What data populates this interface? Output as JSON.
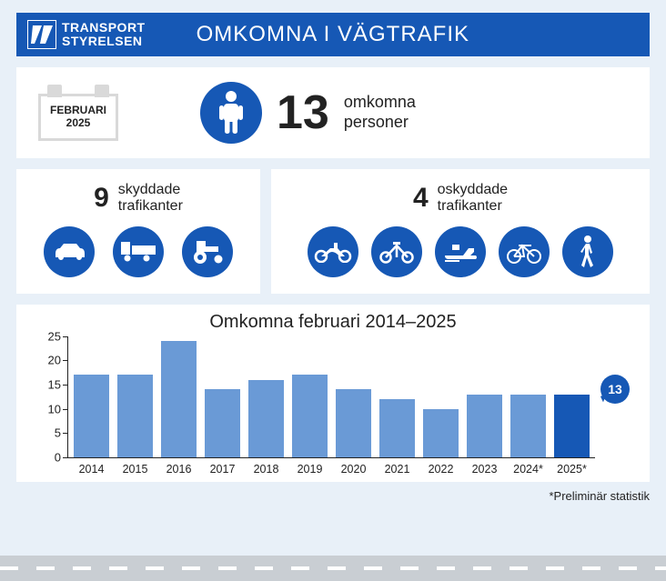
{
  "colors": {
    "primary": "#1658b5",
    "page_bg": "#e8f0f8",
    "card_bg": "#ffffff",
    "text": "#222222",
    "bar": "#6a9ad6",
    "bar_highlight": "#1658b5",
    "road": "#c9ced3",
    "calendar_border": "#d9d9d9"
  },
  "header": {
    "logo_line1": "TRANSPORT",
    "logo_line2": "STYRELSEN",
    "title": "OMKOMNA I VÄGTRAFIK"
  },
  "date_card": {
    "month": "FEBRUARI",
    "year": "2025"
  },
  "summary": {
    "count": 13,
    "label_line1": "omkomna",
    "label_line2": "personer"
  },
  "protected": {
    "count": 9,
    "label_line1": "skyddade",
    "label_line2": "trafikanter",
    "icons": [
      "car",
      "truck",
      "tractor"
    ]
  },
  "unprotected": {
    "count": 4,
    "label_line1": "oskyddade",
    "label_line2": "trafikanter",
    "icons": [
      "motorcycle",
      "moped",
      "snowmobile",
      "bicycle",
      "pedestrian"
    ]
  },
  "chart": {
    "type": "bar",
    "title": "Omkomna februari 2014–2025",
    "categories": [
      "2014",
      "2015",
      "2016",
      "2017",
      "2018",
      "2019",
      "2020",
      "2021",
      "2022",
      "2023",
      "2024*",
      "2025*"
    ],
    "values": [
      17,
      17,
      24,
      14,
      16,
      17,
      14,
      12,
      10,
      13,
      13,
      13
    ],
    "highlight_index": 11,
    "ylim": [
      0,
      25
    ],
    "ytick_step": 5,
    "bar_color": "#6a9ad6",
    "highlight_color": "#1658b5",
    "axis_color": "#222222",
    "bubble_value": 13,
    "title_fontsize": 20,
    "tick_fontsize": 13
  },
  "footnote": "*Preliminär statistik"
}
